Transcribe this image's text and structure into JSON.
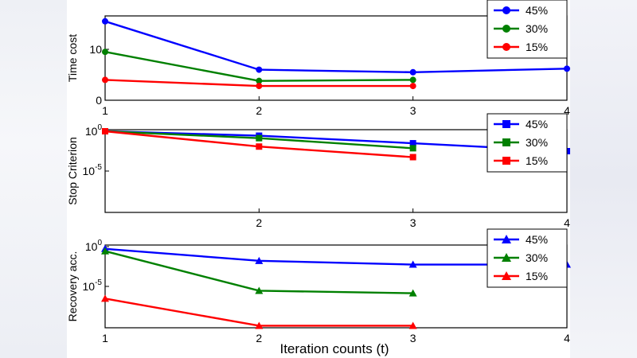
{
  "chart_data": [
    {
      "type": "line",
      "ylabel": "Time cost",
      "x": [
        1,
        2,
        3,
        4
      ],
      "xticks": [
        "1",
        "2",
        "3",
        "4"
      ],
      "xlim": [
        1,
        4
      ],
      "ylim": [
        0,
        15
      ],
      "yscale": "linear",
      "yticks": [
        {
          "value": 0,
          "label": "0"
        },
        {
          "value": 10,
          "label": "10"
        }
      ],
      "marker": "circle",
      "legend_position": "top-right",
      "series": [
        {
          "name": "45%",
          "color": "#0000ff",
          "x": [
            1,
            2,
            3,
            4
          ],
          "values": [
            15.5,
            6.0,
            5.5,
            6.2
          ]
        },
        {
          "name": "30%",
          "color": "#008000",
          "x": [
            1,
            2,
            3
          ],
          "values": [
            9.5,
            3.8,
            4.0
          ]
        },
        {
          "name": "15%",
          "color": "#ff0000",
          "x": [
            1,
            2,
            3
          ],
          "values": [
            4.0,
            2.8,
            2.8
          ]
        }
      ]
    },
    {
      "type": "line",
      "ylabel": "Stop Criterion",
      "x": [
        1,
        2,
        3,
        4
      ],
      "xticks": [
        "2",
        "3",
        "4"
      ],
      "xlim": [
        1,
        4
      ],
      "ylim": [
        0,
        1
      ],
      "yscale": "log",
      "yticks": [
        {
          "value": 1,
          "label": "10",
          "exp": "0"
        },
        {
          "value": 1e-05,
          "label": "10",
          "exp": "-5"
        }
      ],
      "marker": "square",
      "legend_position": "top-right",
      "series": [
        {
          "name": "45%",
          "color": "#0000ff",
          "x": [
            1,
            2,
            3,
            4
          ],
          "values": [
            1,
            0.6,
            0.25,
            0.1
          ]
        },
        {
          "name": "30%",
          "color": "#008000",
          "x": [
            1,
            2,
            3
          ],
          "values": [
            1,
            0.45,
            0.14
          ]
        },
        {
          "name": "15%",
          "color": "#ff0000",
          "x": [
            1,
            2,
            3
          ],
          "values": [
            1,
            0.17,
            0.05
          ]
        }
      ]
    },
    {
      "type": "line",
      "ylabel": "Recovery acc.",
      "xlabel": "Iteration counts (t)",
      "x": [
        1,
        2,
        3,
        4
      ],
      "xticks": [
        "1",
        "2",
        "3",
        "4"
      ],
      "xlim": [
        1,
        4
      ],
      "ylim": [
        0,
        1
      ],
      "yscale": "log",
      "yticks": [
        {
          "value": 1,
          "label": "10",
          "exp": "0"
        },
        {
          "value": 1e-05,
          "label": "10",
          "exp": "-5"
        }
      ],
      "marker": "triangle",
      "legend_position": "top-right",
      "series": [
        {
          "name": "45%",
          "color": "#0000ff",
          "x": [
            1,
            2,
            3,
            4
          ],
          "values": [
            0.95,
            0.72,
            0.66,
            0.66
          ]
        },
        {
          "name": "30%",
          "color": "#008000",
          "x": [
            1,
            2,
            3
          ],
          "values": [
            0.9,
            0.36,
            0.34
          ]
        },
        {
          "name": "15%",
          "color": "#ff0000",
          "x": [
            1,
            2,
            3
          ],
          "values": [
            0.3,
            0.16,
            0.16
          ]
        }
      ]
    }
  ]
}
